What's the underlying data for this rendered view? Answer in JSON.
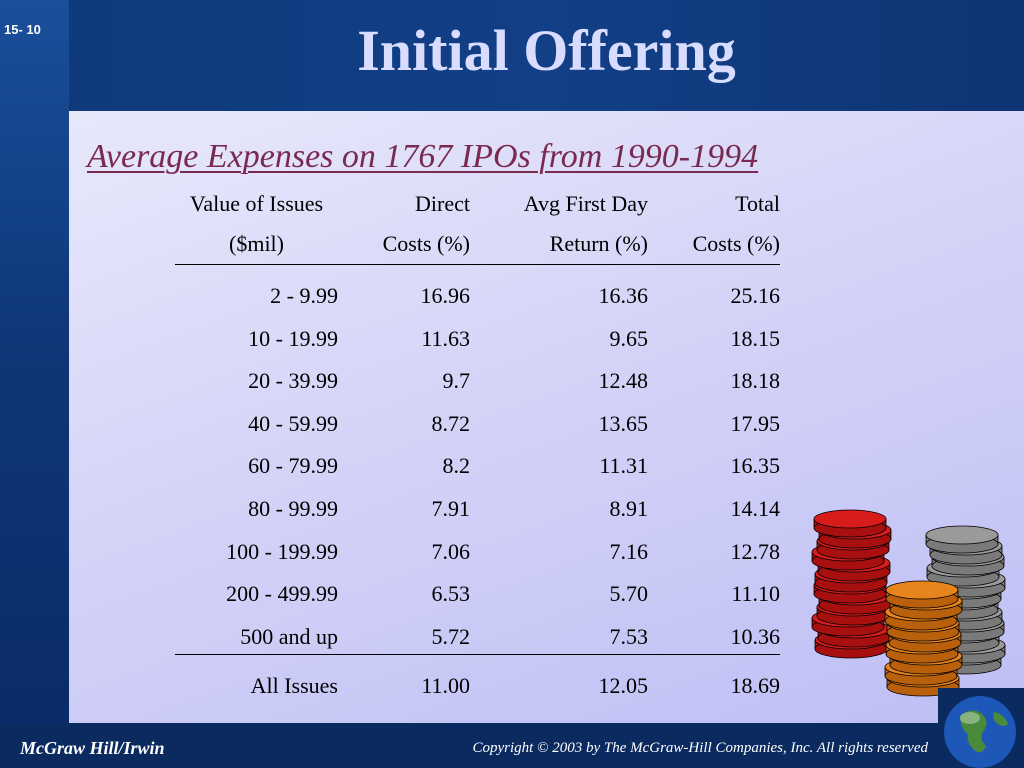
{
  "slide": {
    "number": "15- 10",
    "title": "Initial Offering",
    "subtitle": "Average Expenses on 1767 IPOs from 1990-1994"
  },
  "table": {
    "headers": [
      {
        "line1": "Value of Issues",
        "line2": "($mil)"
      },
      {
        "line1": "Direct",
        "line2": "Costs (%)"
      },
      {
        "line1": "Avg First Day",
        "line2": "Return (%)"
      },
      {
        "line1": "Total",
        "line2": "Costs (%)"
      }
    ],
    "rows": [
      [
        "2  -  9.99",
        "16.96",
        "16.36",
        "25.16"
      ],
      [
        "10  -  19.99",
        "11.63",
        "9.65",
        "18.15"
      ],
      [
        "20  -  39.99",
        "9.7",
        "12.48",
        "18.18"
      ],
      [
        "40  -  59.99",
        "8.72",
        "13.65",
        "17.95"
      ],
      [
        "60  -  79.99",
        "8.2",
        "11.31",
        "16.35"
      ],
      [
        "80  -  99.99",
        "7.91",
        "8.91",
        "14.14"
      ],
      [
        "100  -  199.99",
        "7.06",
        "7.16",
        "12.78"
      ],
      [
        "200  -  499.99",
        "6.53",
        "5.70",
        "11.10"
      ],
      [
        "500 and up",
        "5.72",
        "7.53",
        "10.36"
      ]
    ],
    "total": [
      "All Issues",
      "11.00",
      "12.05",
      "18.69"
    ]
  },
  "footer": {
    "publisher": "McGraw Hill/Irwin",
    "copyright": "Copyright © 2003 by The McGraw-Hill Companies, Inc. All rights reserved"
  },
  "icons": [
    "coin-stacks-icon",
    "globe-icon"
  ],
  "colors": {
    "title": "#d8dcff",
    "subtitle": "#7a2a50",
    "background": "#0b2a5c"
  }
}
